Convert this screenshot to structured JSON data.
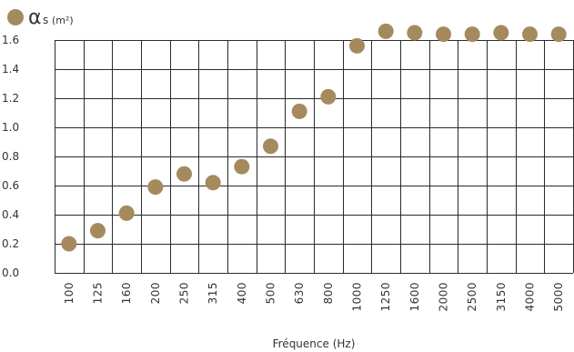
{
  "chart_data": {
    "type": "scatter",
    "legend": {
      "symbol": "α",
      "subscript": "s",
      "unit": "(m²)",
      "color": "#a58a5e",
      "placement": "top-left"
    },
    "xlabel": "Fréquence (Hz)",
    "categories": [
      "100",
      "125",
      "160",
      "200",
      "250",
      "315",
      "400",
      "500",
      "630",
      "800",
      "1000",
      "1250",
      "1600",
      "2000",
      "2500",
      "3150",
      "4000",
      "5000"
    ],
    "series": [
      {
        "values": [
          0.2,
          0.29,
          0.41,
          0.59,
          0.68,
          0.62,
          0.73,
          0.87,
          1.11,
          1.21,
          1.56,
          1.66,
          1.65,
          1.64,
          1.64,
          1.65,
          1.64,
          1.64
        ]
      }
    ],
    "ylim": [
      0.0,
      1.6
    ],
    "yticks": [
      "0.0",
      "0.2",
      "0.4",
      "0.6",
      "0.8",
      "1.0",
      "1.2",
      "1.4",
      "1.6"
    ],
    "grid": true,
    "marker_color": "#a58a5e",
    "grid_color": "#2b2b2b"
  }
}
